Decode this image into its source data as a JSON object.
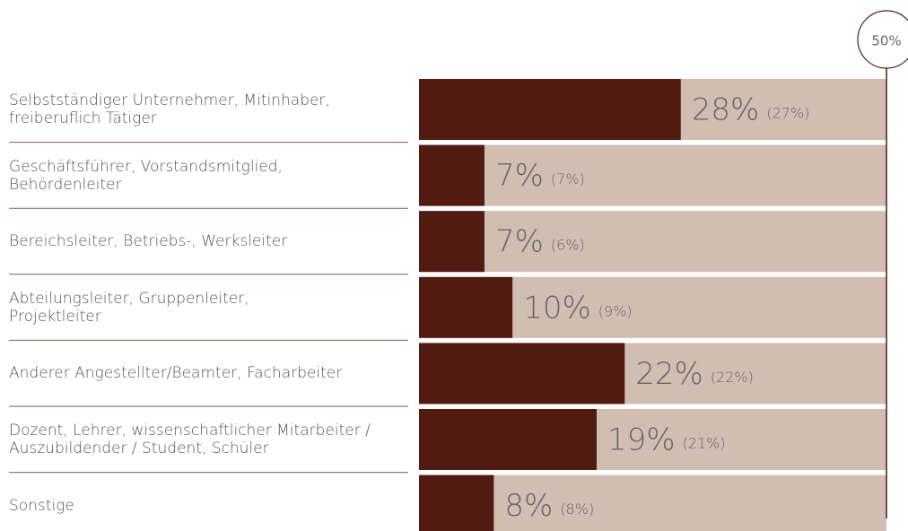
{
  "chart_data": {
    "type": "bar",
    "orientation": "horizontal",
    "categories": [
      "Selbstständiger Unternehmer, Mitinhaber,\nfreiberuflich Tätiger",
      "Geschäftsführer, Vorstandsmitglied,\nBehördenleiter",
      "Bereichsleiter, Betriebs-, Werksleiter",
      "Abteilungsleiter, Gruppenleiter,\nProjektleiter",
      "Anderer Angestellter/Beamter, Facharbeiter",
      "Dozent, Lehrer, wissenschaftlicher Mitarbeiter /\nAuszubildender / Student, Schüler",
      "Sonstige"
    ],
    "values": [
      28,
      7,
      7,
      10,
      22,
      19,
      8
    ],
    "value_labels": [
      "28%",
      "7%",
      "7%",
      "10%",
      "22%",
      "19%",
      "8%"
    ],
    "previous_values": [
      27,
      7,
      6,
      9,
      22,
      21,
      8
    ],
    "previous_value_labels": [
      "(27%)",
      "(7%)",
      "(6%)",
      "(9%)",
      "(22%)",
      "(21%)",
      "(8%)"
    ],
    "color": "#521b12",
    "background_color": "#d2bdb3",
    "xlim": [
      0,
      50
    ],
    "xticks": [
      {
        "value": 50,
        "label": "50%"
      }
    ]
  }
}
